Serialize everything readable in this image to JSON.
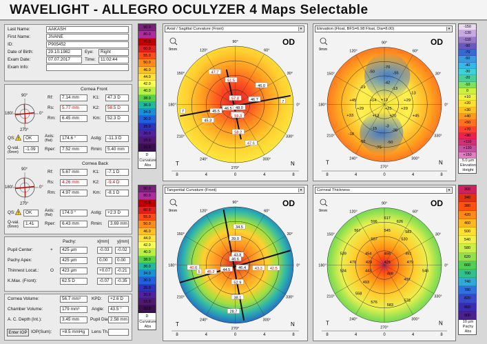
{
  "title": "WAVELIGHT  -  ALLEGRO OCULYZER   4 Maps Selectable",
  "patient": {
    "last_name_label": "Last Name:",
    "last_name": "AAKASH",
    "first_name_label": "First Name:",
    "first_name": "JIVANE",
    "id_label": "ID:",
    "id": "P905452",
    "dob_label": "Date of Birth:",
    "dob": "29.10.1982",
    "eye_label": "Eye:",
    "eye": "Right",
    "exam_date_label": "Exam Date:",
    "exam_date": "07.07.2017",
    "time_label": "Time:",
    "time": "11:02:44",
    "exam_info_label": "Exam Info:",
    "exam_info": ""
  },
  "front": {
    "heading": "Cornea Front",
    "rf_l": "Rf:",
    "rf": "7.14 mm",
    "k1_l": "K1:",
    "k1": "47.3 D",
    "rs_l": "Rs:",
    "rs": "5.77 mm",
    "k2_l": "K2:",
    "k2": "58.5 D",
    "rm_l": "Rm:",
    "rm": "6.45 mm",
    "km_l": "Km:",
    "km": "52.3 D",
    "qs_l": "QS:",
    "qs": "OK",
    "axis_l": "Axis:",
    "axis_sub": "(flat)",
    "axis": "174.6 °",
    "astig_l": "Astig:",
    "astig": "-11.3 D",
    "qval_l": "Q-val.",
    "qval_sub": "(6mm)",
    "qval": "-1.09",
    "rper_l": "Rper:",
    "rper": "7.52 mm",
    "rmin_l": "Rmin:",
    "rmin": "5.40 mm",
    "deg90": "90°",
    "deg0": "0°",
    "deg180": "180°",
    "deg270": "270°"
  },
  "back": {
    "heading": "Cornea Back",
    "rf_l": "Rf:",
    "rf": "5.67 mm",
    "k1_l": "K1:",
    "k1": "-7.1 D",
    "rs_l": "Rs:",
    "rs": "4.26 mm",
    "k2_l": "K2:",
    "k2": "-9.4 D",
    "rm_l": "Rm:",
    "rm": "4.97 mm",
    "km_l": "Km:",
    "km": "-8.1 D",
    "qs_l": "QS:",
    "qs": "OK",
    "axis_l": "Axis:",
    "axis_sub": "(flat)",
    "axis": "174.0 °",
    "astig_l": "Astig:",
    "astig": "+2.3 D",
    "qval_l": "Q-val.",
    "qval_sub": "(6mm)",
    "qval": "1.41",
    "rper_l": "Rper:",
    "rper": "6.43 mm",
    "rmin_l": "Rmin:",
    "rmin": "3.69 mm",
    "deg90": "90°",
    "deg0": "0°",
    "deg180": "180°",
    "deg270": "270°"
  },
  "pachy": {
    "h_pachy": "Pachy:",
    "h_x": "x[mm]",
    "h_y": "y[mm]",
    "rows": [
      {
        "label": "Pupil Center:",
        "sym": "+",
        "p": "425 µm",
        "x": "-0.03",
        "y": "-0.02"
      },
      {
        "label": "Pachy Apex:",
        "sym": "",
        "p": "425 µm",
        "x": "0.00",
        "y": "0.00"
      },
      {
        "label": "Thinnest Locat.:",
        "sym": "O",
        "p": "423 µm",
        "x": "+0.07",
        "y": "-0.21"
      },
      {
        "label": "K.Max. (Front):",
        "sym": "",
        "p": "62.5 D",
        "x": "-0.07",
        "y": "-0.35"
      }
    ]
  },
  "volume": {
    "cv_l": "Cornea Volume:",
    "cv": "56.7 mm³",
    "kpd_l": "KPD:",
    "kpd": "+2.6 D",
    "chv_l": "Chamber Volume:",
    "chv": "179 mm³",
    "angle_l": "Angle:",
    "angle": "43.5 °",
    "acd_l": "A. C. Depth (Int.):",
    "acd": "3.45 mm",
    "pd_l": "Pupil Dia:",
    "pd": "2.58 mm",
    "iop_btn": "Enter IOP",
    "iop_l": "IOP(Sum):",
    "iop": "+8.5 mmHg",
    "lens_l": "Lens Th.:",
    "lens": ""
  },
  "maps": {
    "m1": {
      "select": "Axial / Sagittal Curvature (Front)",
      "eye": "OD",
      "mm": "9mm",
      "labels": [
        "47.7",
        "51.5",
        "57.8",
        "46.7",
        "46.0",
        "45.5",
        "46.5",
        "48.0",
        "60.3",
        "59.3",
        "58.2",
        "47.6",
        "45.3",
        "7",
        "7"
      ]
    },
    "m2": {
      "select": "Elevation (Float, BFS=6.98 Float, Dia=8.00)",
      "eye": "OD",
      "mm": "9mm",
      "labels": [
        "-70",
        "-50",
        "-55",
        "-42",
        "-19",
        "-13",
        "-13",
        "+45",
        "+14",
        "+13",
        "+29",
        "+29",
        "+25",
        "+29",
        "+33",
        "+13",
        "+20",
        "+45",
        "-15",
        "-3",
        "-38",
        "-18",
        "-62",
        "-50",
        "-75"
      ]
    },
    "m3": {
      "select": "Tangential Curvature (Front)",
      "eye": "OD",
      "mm": "9mm",
      "labels": [
        "34.5",
        "39.0",
        "43.8",
        "46.6",
        "40.8",
        "5",
        "45.2",
        "44.5",
        "46.4",
        "43.3",
        "42.5",
        "52.9",
        "38.1",
        "28.7"
      ]
    },
    "m4": {
      "select": "Corneal Thickness",
      "eye": "OD",
      "mm": "9mm",
      "labels": [
        "617",
        "596",
        "626",
        "567",
        "545",
        "582",
        "507",
        "530",
        "539",
        "454",
        "468",
        "491",
        "470",
        "429",
        "425",
        "479",
        "534",
        "443",
        "488",
        "546",
        "493",
        "497",
        "558",
        "576",
        "583",
        "578"
      ]
    }
  },
  "axes": {
    "x_ticks": [
      "8",
      "4",
      "0",
      "4",
      "8"
    ],
    "t": "T",
    "n": "N",
    "a90": "90°",
    "a120": "120°",
    "a60": "60°",
    "a150": "150°",
    "a30": "30°",
    "a180": "180°",
    "a0": "0°",
    "a210": "210°",
    "a330": "330°",
    "a240": "240°",
    "a300": "300°",
    "a270": "270°"
  },
  "scales": {
    "curv1": {
      "values": [
        "90.0",
        "80.0",
        "70.0",
        "60.0",
        "55.0",
        "50.0",
        "46.0",
        "44.0",
        "42.0",
        "40.0",
        "38.0",
        "36.0",
        "34.0",
        "30.0",
        "25.0",
        "20.0",
        "15.0",
        "10.0",
        "D"
      ],
      "l1": "Curvature",
      "l2": "Abs"
    },
    "elev": {
      "values": [
        "-150",
        "-130",
        "-110",
        "-90",
        "-70",
        "-50",
        "-40",
        "-30",
        "-20",
        "-10",
        "0",
        "+10",
        "+20",
        "+30",
        "+40",
        "+50",
        "+70",
        "+90",
        "+110",
        "+130",
        "+150"
      ],
      "l0": "5.0 µm",
      "l1": "Elevation",
      "l2": "Height"
    },
    "curv2": {
      "values": [
        "90.0",
        "80.0",
        "70.0",
        "60.0",
        "55.0",
        "50.0",
        "46.0",
        "44.0",
        "42.0",
        "40.0",
        "38.0",
        "36.0",
        "34.0",
        "30.0",
        "25.0",
        "20.0",
        "15.0",
        "10.0",
        "D"
      ],
      "l1": "Curvature",
      "l2": "Abs"
    },
    "pachy": {
      "values": [
        "300",
        "340",
        "380",
        "420",
        "460",
        "500",
        "540",
        "580",
        "620",
        "660",
        "700",
        "740",
        "780",
        "820",
        "860",
        "900"
      ],
      "l0": "10 µm",
      "l1": "Pachy",
      "l2": "Abs"
    }
  },
  "colors": {
    "curv": [
      "#7a1f7a",
      "#b02aa0",
      "#c00000",
      "#e02020",
      "#ff4a1a",
      "#ff8c1a",
      "#ffc020",
      "#ffe23a",
      "#f8ff50",
      "#b8f040",
      "#58d048",
      "#20b8a0",
      "#1890d8",
      "#2060e0",
      "#3030c0",
      "#5020a0",
      "#501870",
      "#3a1050",
      "#ffffff"
    ],
    "elev": [
      "#e8d8f0",
      "#c8a8e0",
      "#9878c8",
      "#6858c0",
      "#3868d0",
      "#3898e0",
      "#38b8e8",
      "#40d0d8",
      "#48d098",
      "#80e060",
      "#d0f040",
      "#f0f040",
      "#ffe030",
      "#ffc020",
      "#ff9820",
      "#ff7020",
      "#ff4030",
      "#ee2050",
      "#d03078",
      "#c850a0",
      "#e080c0"
    ],
    "pachy": [
      "#d02060",
      "#e03010",
      "#ff5010",
      "#ff8a18",
      "#ffb820",
      "#ffe030",
      "#f0f048",
      "#c8f048",
      "#90e050",
      "#50d050",
      "#30c090",
      "#30a8d8",
      "#3070e0",
      "#3848c8",
      "#3a2cb0",
      "#4a2090"
    ]
  }
}
